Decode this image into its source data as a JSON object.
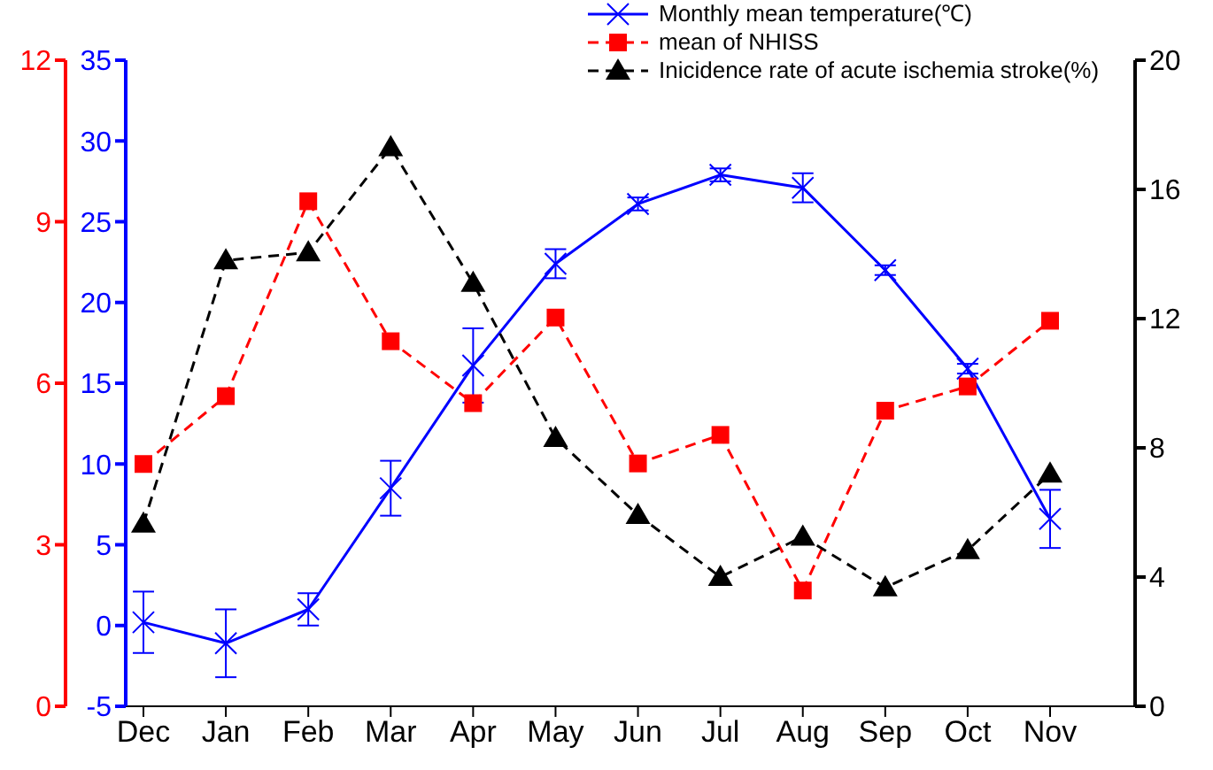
{
  "chart_data": {
    "type": "line",
    "categories": [
      "Dec",
      "Jan",
      "Feb",
      "Mar",
      "Apr",
      "May",
      "Jun",
      "Jul",
      "Aug",
      "Sep",
      "Oct",
      "Nov"
    ],
    "series": [
      {
        "name": "Monthly mean temperature(℃)",
        "color": "#0000ff",
        "marker": "cross",
        "line_style": "solid",
        "axis": "y",
        "values": [
          0.2,
          -1.1,
          1.0,
          8.5,
          16.1,
          22.4,
          26.1,
          27.9,
          27.1,
          22.0,
          15.9,
          6.6
        ],
        "errors": [
          1.9,
          2.1,
          1.0,
          1.7,
          2.3,
          0.9,
          0.4,
          0.4,
          0.9,
          0.3,
          0.3,
          1.8
        ]
      },
      {
        "name": "mean of NHISS",
        "color": "#ff0000",
        "marker": "square",
        "line_style": "dashed",
        "axis": "y2",
        "values": [
          4.5,
          5.76,
          9.38,
          6.78,
          5.63,
          7.22,
          4.51,
          5.04,
          2.15,
          5.49,
          5.94,
          7.16
        ]
      },
      {
        "name": "Inicidence rate of acute ischemia stroke(%)",
        "color": "#000000",
        "marker": "triangle",
        "line_style": "dashed",
        "axis": "y3",
        "values": [
          5.65,
          13.8,
          14.05,
          17.3,
          13.1,
          8.3,
          5.92,
          4.0,
          5.25,
          3.68,
          4.83,
          7.2
        ]
      }
    ],
    "ylim": [
      -5,
      35
    ],
    "yticks": [
      -5,
      0,
      5,
      10,
      15,
      20,
      25,
      30,
      35
    ],
    "y2lim": [
      0,
      12
    ],
    "y2ticks": [
      0,
      3,
      6,
      9,
      12
    ],
    "y3lim": [
      0,
      20
    ],
    "y3ticks": [
      0,
      4,
      8,
      12,
      16,
      20
    ],
    "grid": false,
    "legend": "top right"
  }
}
